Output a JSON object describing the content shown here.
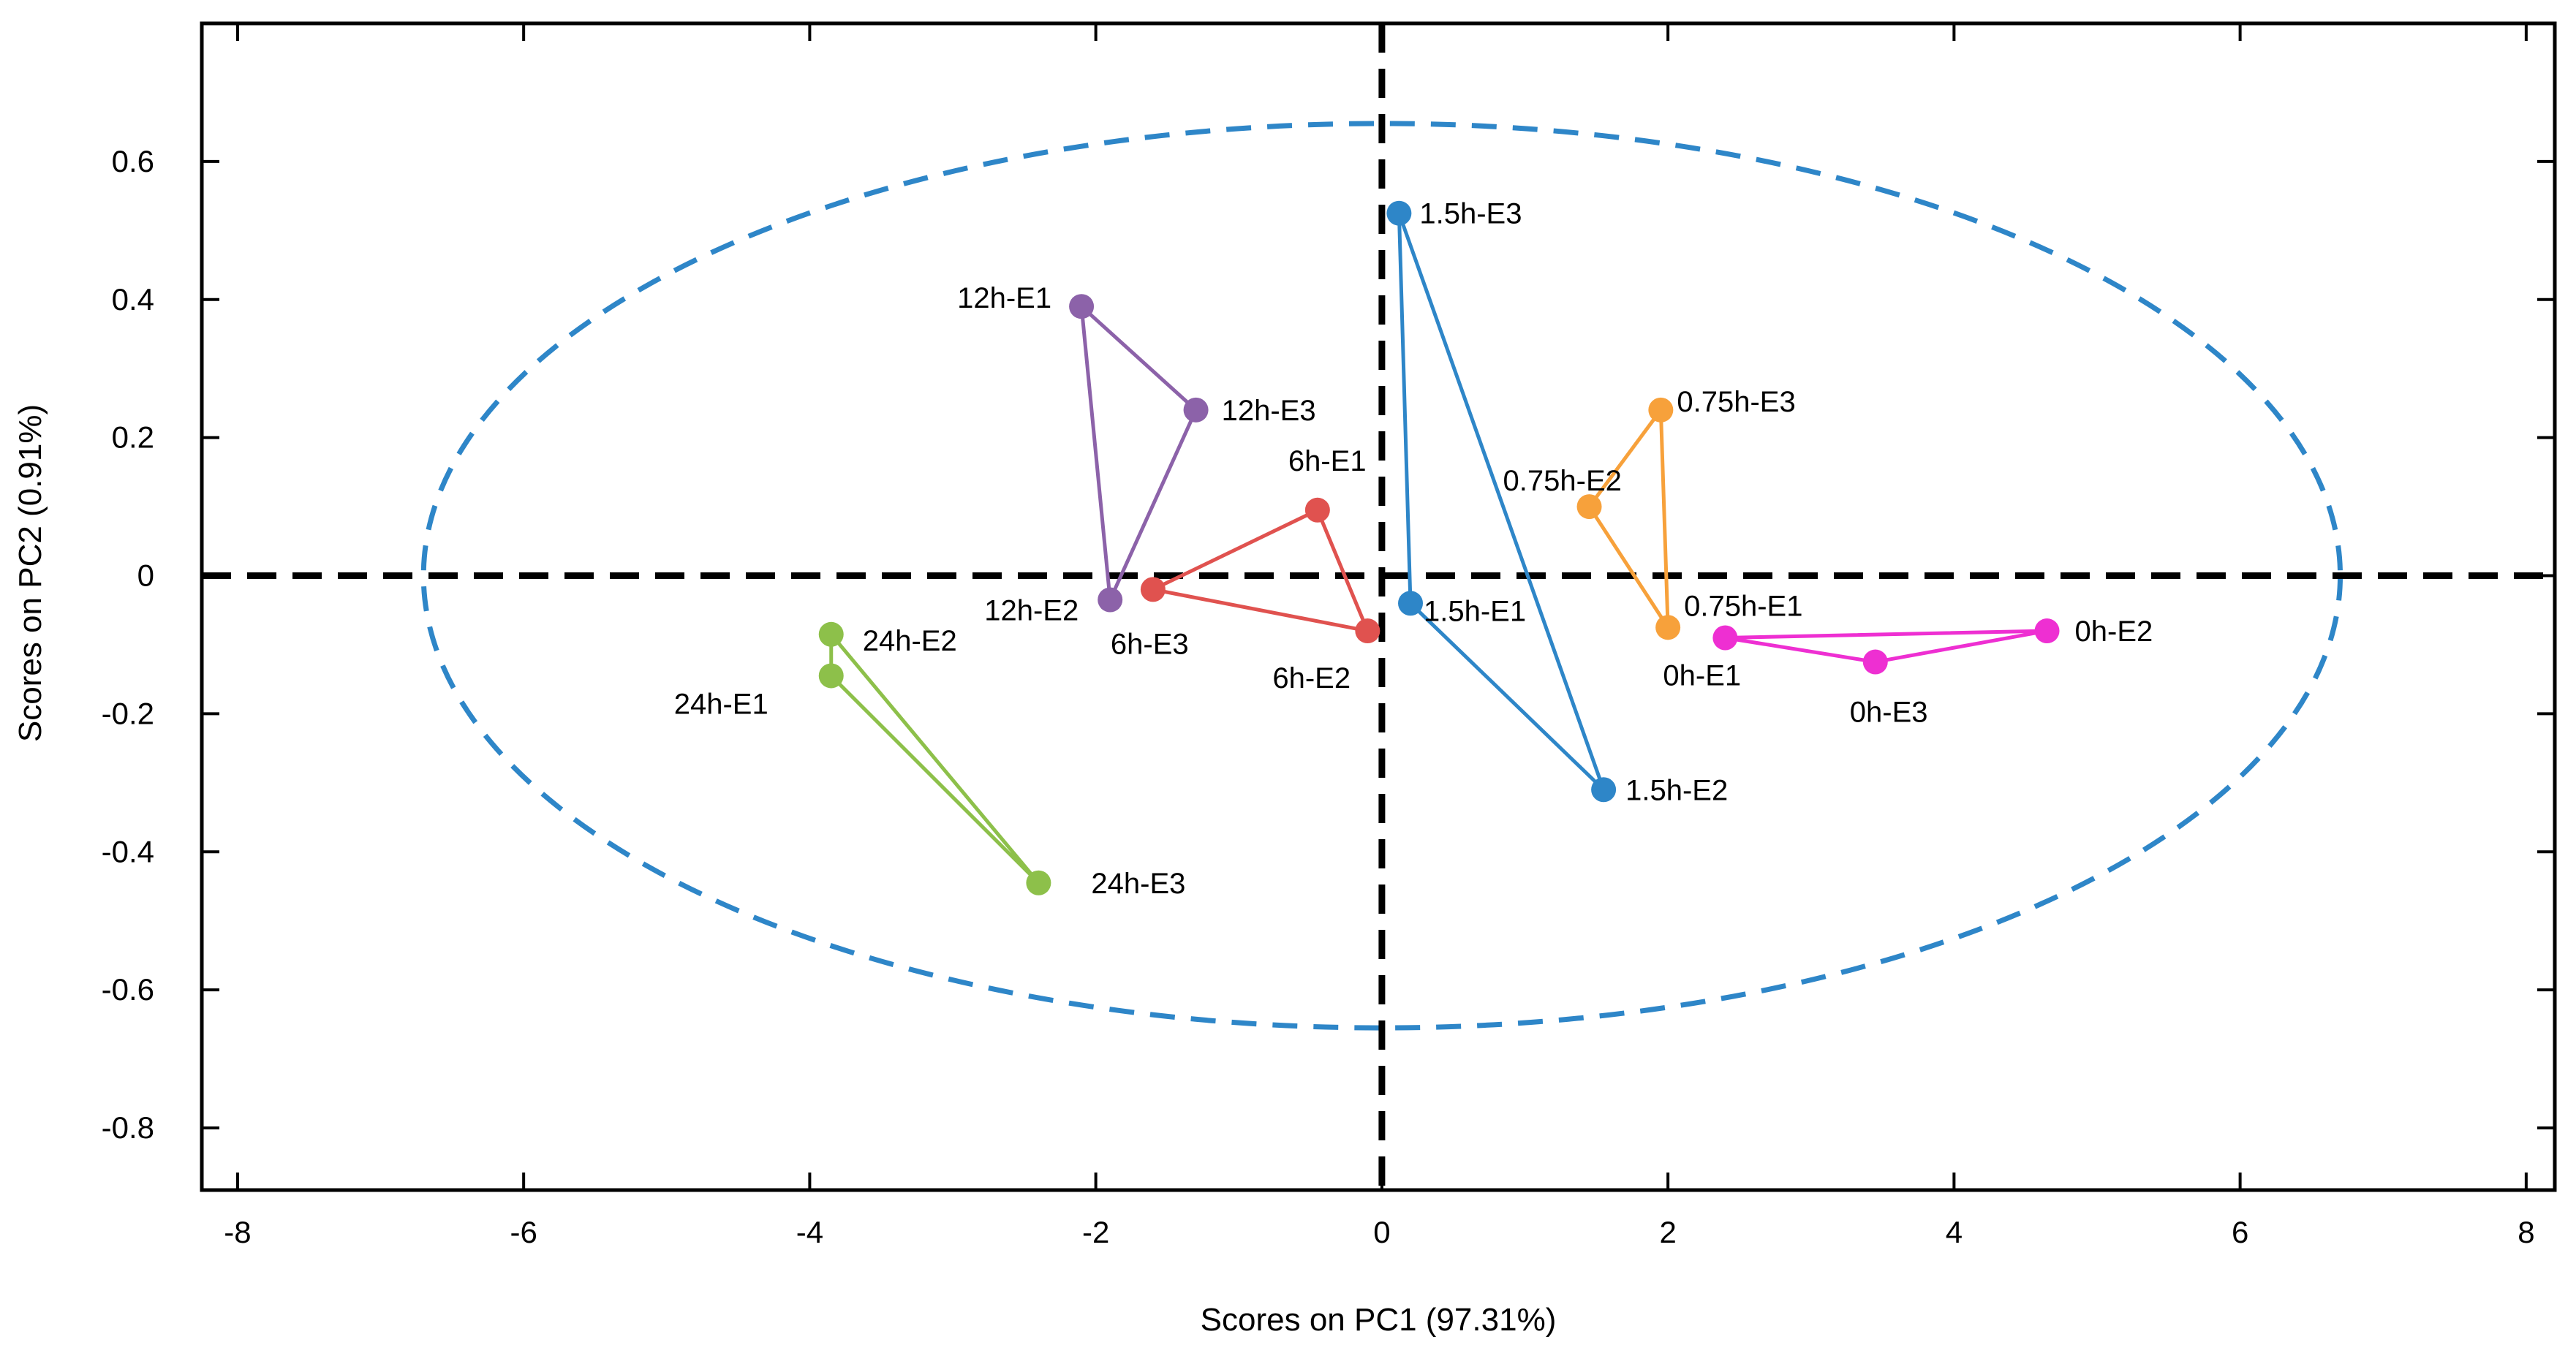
{
  "chart_data": {
    "type": "scatter",
    "title": "",
    "xlabel": "Scores on PC1 (97.31%)",
    "ylabel": "Scores on PC2 (0.91%)",
    "xlim": [
      -8.25,
      8.2
    ],
    "ylim": [
      -0.89,
      0.8
    ],
    "x_ticks": [
      -8,
      -6,
      -4,
      -2,
      0,
      2,
      4,
      6,
      8
    ],
    "y_ticks": [
      0.6,
      0.4,
      0.2,
      0,
      -0.2,
      -0.4,
      -0.6,
      -0.8
    ],
    "x_tick_labels": [
      "-8",
      "-6",
      "-4",
      "-2",
      "0",
      "2",
      "4",
      "6",
      "8"
    ],
    "y_tick_labels": [
      "0.6",
      "0.4",
      "0.2",
      "0",
      "-0.2",
      "-0.4",
      "-0.6",
      "-0.8"
    ],
    "confidence_ellipse": {
      "center": [
        0,
        0
      ],
      "x_semi_axis": 6.7,
      "y_semi_axis": 0.655,
      "style": "dashed",
      "color": "#2e86c8"
    },
    "reference_lines": {
      "x": 0,
      "y": 0,
      "style": "dashed",
      "color": "#000000"
    },
    "series": [
      {
        "name": "0h",
        "color": "#ee2fd2",
        "points": [
          {
            "label": "0h-E1",
            "x": 2.4,
            "y": -0.09
          },
          {
            "label": "0h-E2",
            "x": 4.65,
            "y": -0.08
          },
          {
            "label": "0h-E3",
            "x": 3.45,
            "y": -0.125
          }
        ]
      },
      {
        "name": "0.75h",
        "color": "#f7a13b",
        "points": [
          {
            "label": "0.75h-E1",
            "x": 2.0,
            "y": -0.075
          },
          {
            "label": "0.75h-E2",
            "x": 1.45,
            "y": 0.1
          },
          {
            "label": "0.75h-E3",
            "x": 1.95,
            "y": 0.24
          }
        ]
      },
      {
        "name": "1.5h",
        "color": "#2e86c8",
        "points": [
          {
            "label": "1.5h-E1",
            "x": 0.2,
            "y": -0.04
          },
          {
            "label": "1.5h-E2",
            "x": 1.55,
            "y": -0.31
          },
          {
            "label": "1.5h-E3",
            "x": 0.12,
            "y": 0.525
          }
        ]
      },
      {
        "name": "6h",
        "color": "#e0524f",
        "points": [
          {
            "label": "6h-E1",
            "x": -0.45,
            "y": 0.095
          },
          {
            "label": "6h-E2",
            "x": -0.1,
            "y": -0.08
          },
          {
            "label": "6h-E3",
            "x": -1.6,
            "y": -0.02
          }
        ]
      },
      {
        "name": "12h",
        "color": "#8c62a9",
        "points": [
          {
            "label": "12h-E1",
            "x": -2.1,
            "y": 0.39
          },
          {
            "label": "12h-E2",
            "x": -1.9,
            "y": -0.035
          },
          {
            "label": "12h-E3",
            "x": -1.3,
            "y": 0.24
          }
        ]
      },
      {
        "name": "24h",
        "color": "#8dc04a",
        "points": [
          {
            "label": "24h-E1",
            "x": -3.85,
            "y": -0.145
          },
          {
            "label": "24h-E2",
            "x": -3.85,
            "y": -0.085
          },
          {
            "label": "24h-E3",
            "x": -2.4,
            "y": -0.445
          }
        ]
      }
    ],
    "legend": "none"
  }
}
